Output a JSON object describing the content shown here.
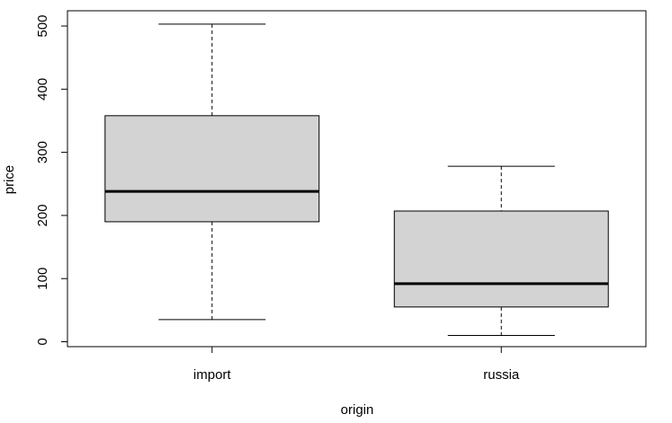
{
  "chart_data": {
    "type": "boxplot",
    "title": "",
    "xlabel": "origin",
    "ylabel": "price",
    "ylim": [
      0,
      500
    ],
    "yticks": [
      0,
      100,
      200,
      300,
      400,
      500
    ],
    "categories": [
      "import",
      "russia"
    ],
    "boxes": [
      {
        "category": "import",
        "min": 35,
        "q1": 190,
        "median": 238,
        "q3": 358,
        "max": 503
      },
      {
        "category": "russia",
        "min": 10,
        "q1": 55,
        "median": 92,
        "q3": 207,
        "max": 278
      }
    ],
    "grid": false,
    "colors": {
      "box_fill": "#d3d3d3",
      "stroke": "#000000"
    }
  }
}
